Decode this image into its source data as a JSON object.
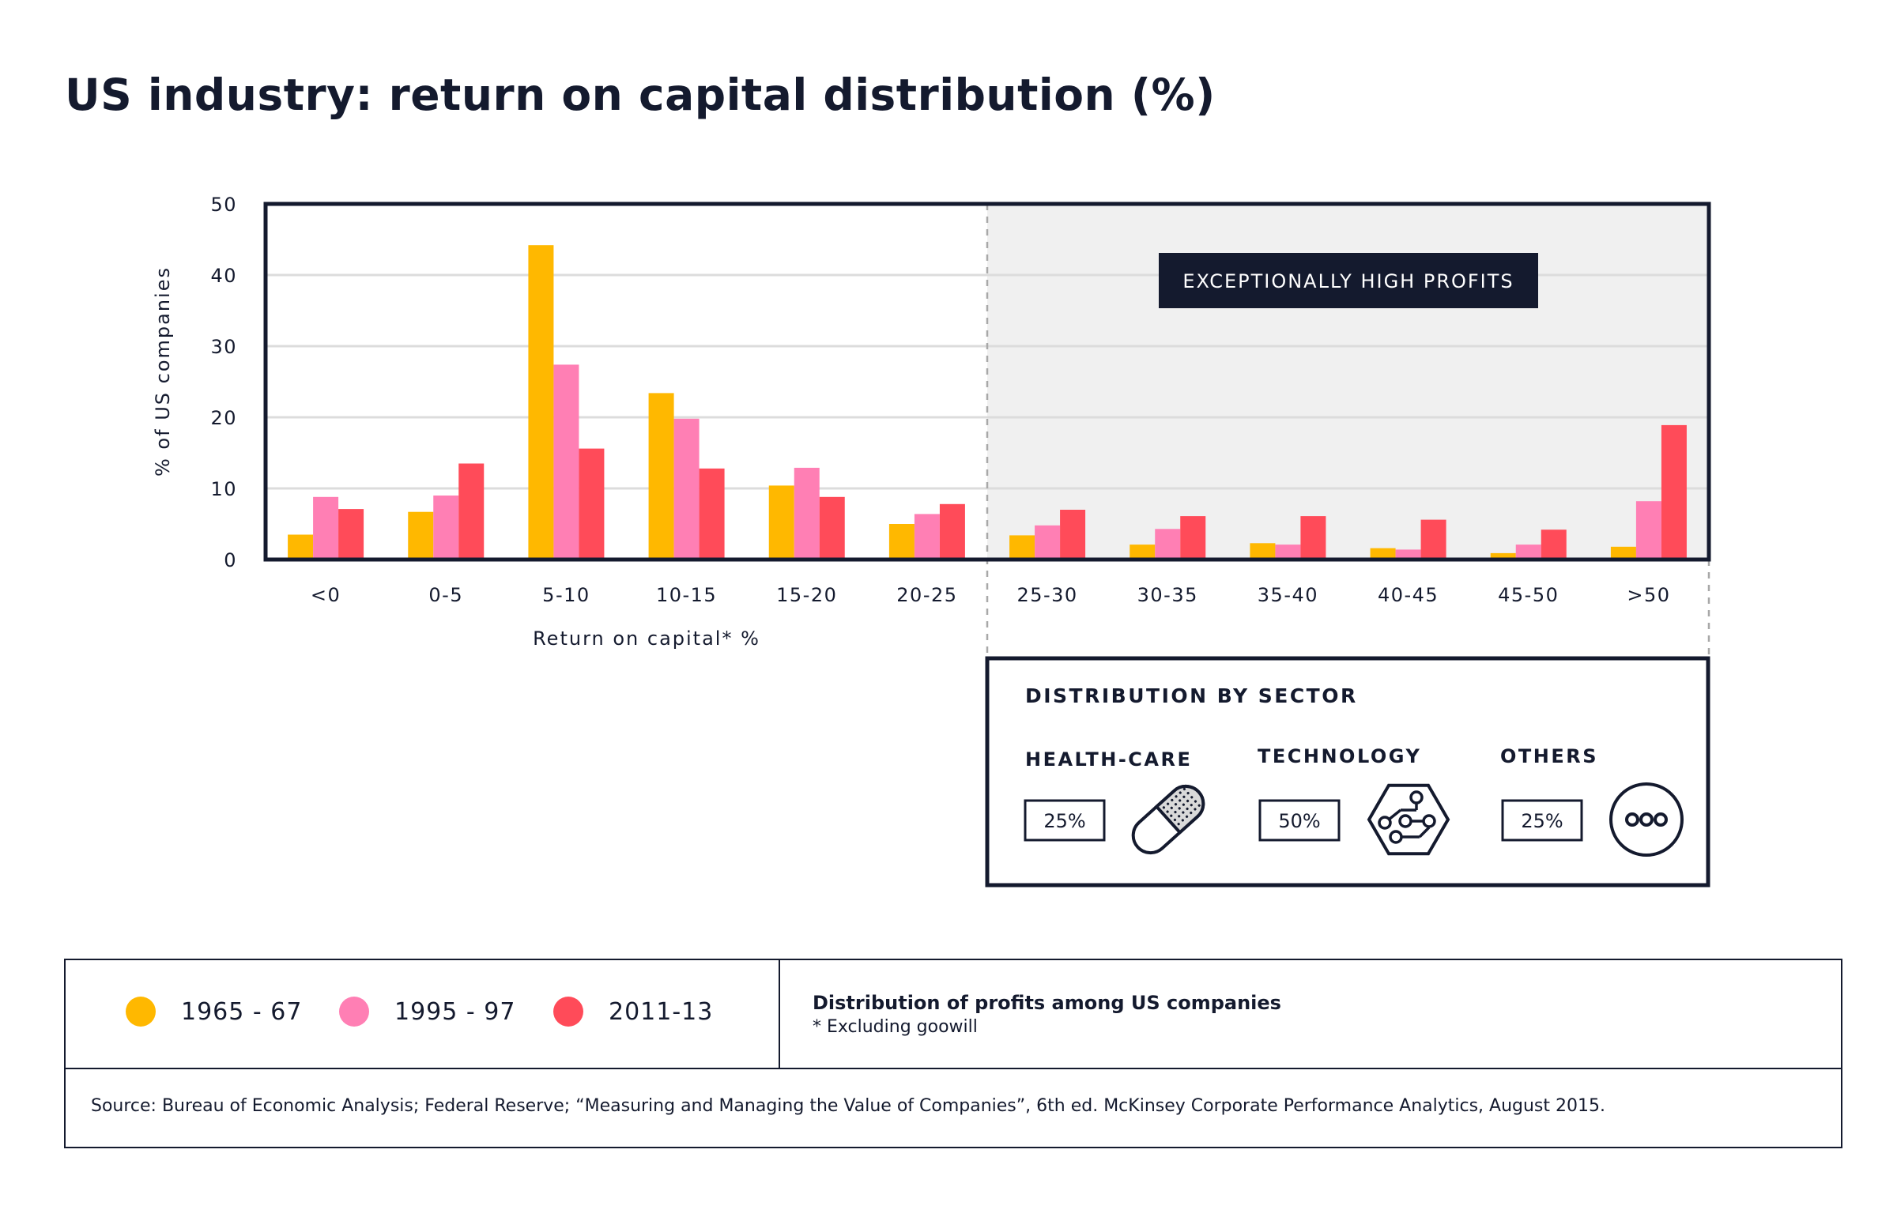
{
  "title": "US industry: return on capital distribution (%)",
  "colors": {
    "s1965": "#ffb800",
    "s1995": "#ff7fb4",
    "s2011": "#ff4b59",
    "navy": "#141a2e",
    "shade": "#f0f0f0",
    "grid": "#dcdcdc"
  },
  "chart_data": {
    "type": "bar",
    "title": "US industry: return on capital distribution (%)",
    "xlabel": "Return on capital* %",
    "ylabel": "% of US companies",
    "ylim": [
      0,
      50
    ],
    "yticks": [
      0,
      10,
      20,
      30,
      40,
      50
    ],
    "grid": true,
    "categories": [
      "<0",
      "0-5",
      "5-10",
      "10-15",
      "15-20",
      "20-25",
      "25-30",
      "30-35",
      "35-40",
      "40-45",
      "45-50",
      ">50"
    ],
    "series": [
      {
        "name": "1965 - 67",
        "values": [
          3.5,
          6.7,
          44.2,
          23.4,
          10.4,
          5.0,
          3.4,
          2.1,
          2.3,
          1.6,
          0.9,
          1.8
        ]
      },
      {
        "name": "1995 - 97",
        "values": [
          8.8,
          9.0,
          27.4,
          19.8,
          12.9,
          6.4,
          4.8,
          4.3,
          2.1,
          1.4,
          2.1,
          8.2
        ]
      },
      {
        "name": "2011-13",
        "values": [
          7.1,
          13.5,
          15.6,
          12.8,
          8.8,
          7.8,
          7.0,
          6.1,
          6.1,
          5.6,
          4.2,
          18.9
        ]
      }
    ],
    "highlight_label": "EXCEPTIONALLY HIGH PROFITS"
  },
  "sector_box": {
    "title": "DISTRIBUTION BY SECTOR",
    "items": [
      {
        "name": "HEALTH-CARE",
        "value": "25%",
        "icon": "capsule-icon"
      },
      {
        "name": "TECHNOLOGY",
        "value": "50%",
        "icon": "circuit-icon"
      },
      {
        "name": "OTHERS",
        "value": "25%",
        "icon": "more-dots-icon"
      }
    ]
  },
  "legend": {
    "items": [
      "1965 - 67",
      "1995 - 97",
      "2011-13"
    ]
  },
  "notes": {
    "title": "Distribution of profits among US companies",
    "subtitle": "* Excluding goowill",
    "source": "Source: Bureau of Economic Analysis; Federal Reserve; “Measuring and Managing the Value of Companies”, 6th ed. McKinsey Corporate Performance Analytics, August 2015."
  }
}
